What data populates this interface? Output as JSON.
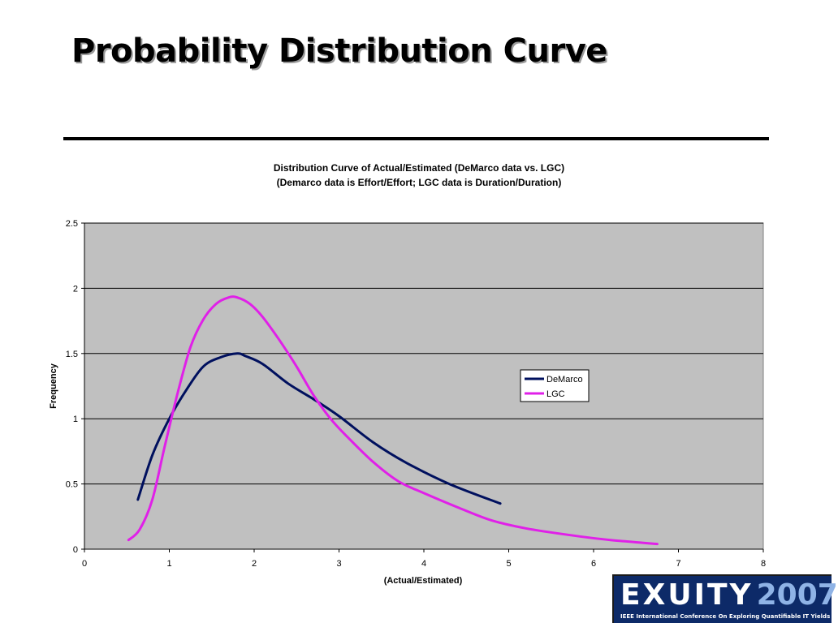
{
  "slide": {
    "title": "Probability Distribution Curve"
  },
  "logo": {
    "wordmark": "EXUITY",
    "year": "2007",
    "subtitle": "IEEE International Conference On Exploring Quantifiable IT Yields"
  },
  "chart_data": {
    "type": "line",
    "title": "Distribution Curve of Actual/Estimated (DeMarco data vs. LGC)",
    "subtitle": "(Demarco data is Effort/Effort; LGC data is Duration/Duration)",
    "xlabel": "(Actual/Estimated)",
    "ylabel": "Frequency",
    "xlim": [
      0,
      8
    ],
    "ylim": [
      0,
      2.5
    ],
    "xticks": [
      "0",
      "1",
      "2",
      "3",
      "4",
      "5",
      "6",
      "7",
      "8"
    ],
    "yticks": [
      "0",
      "0.5",
      "1",
      "1.5",
      "2",
      "2.5"
    ],
    "grid": "horizontal",
    "legend": "right",
    "plot_background": "#c0c0c0",
    "series": [
      {
        "name": "DeMarco",
        "color": "#00105e",
        "x": [
          0.63,
          0.8,
          1.0,
          1.2,
          1.4,
          1.6,
          1.8,
          1.9,
          2.1,
          2.4,
          2.7,
          3.0,
          3.4,
          3.8,
          4.3,
          4.9
        ],
        "y": [
          0.38,
          0.72,
          1.0,
          1.22,
          1.4,
          1.47,
          1.5,
          1.48,
          1.42,
          1.27,
          1.15,
          1.02,
          0.82,
          0.66,
          0.5,
          0.35
        ]
      },
      {
        "name": "LGC",
        "color": "#e020e8",
        "x": [
          0.52,
          0.65,
          0.8,
          0.95,
          1.1,
          1.25,
          1.4,
          1.55,
          1.7,
          1.8,
          1.95,
          2.1,
          2.3,
          2.5,
          2.7,
          2.9,
          3.1,
          3.4,
          3.7,
          4.0,
          4.4,
          4.8,
          5.2,
          5.7,
          6.2,
          6.75
        ],
        "y": [
          0.07,
          0.15,
          0.38,
          0.8,
          1.2,
          1.55,
          1.76,
          1.88,
          1.93,
          1.93,
          1.88,
          1.78,
          1.6,
          1.4,
          1.18,
          1.0,
          0.86,
          0.67,
          0.52,
          0.43,
          0.32,
          0.22,
          0.16,
          0.11,
          0.07,
          0.04
        ]
      }
    ]
  }
}
